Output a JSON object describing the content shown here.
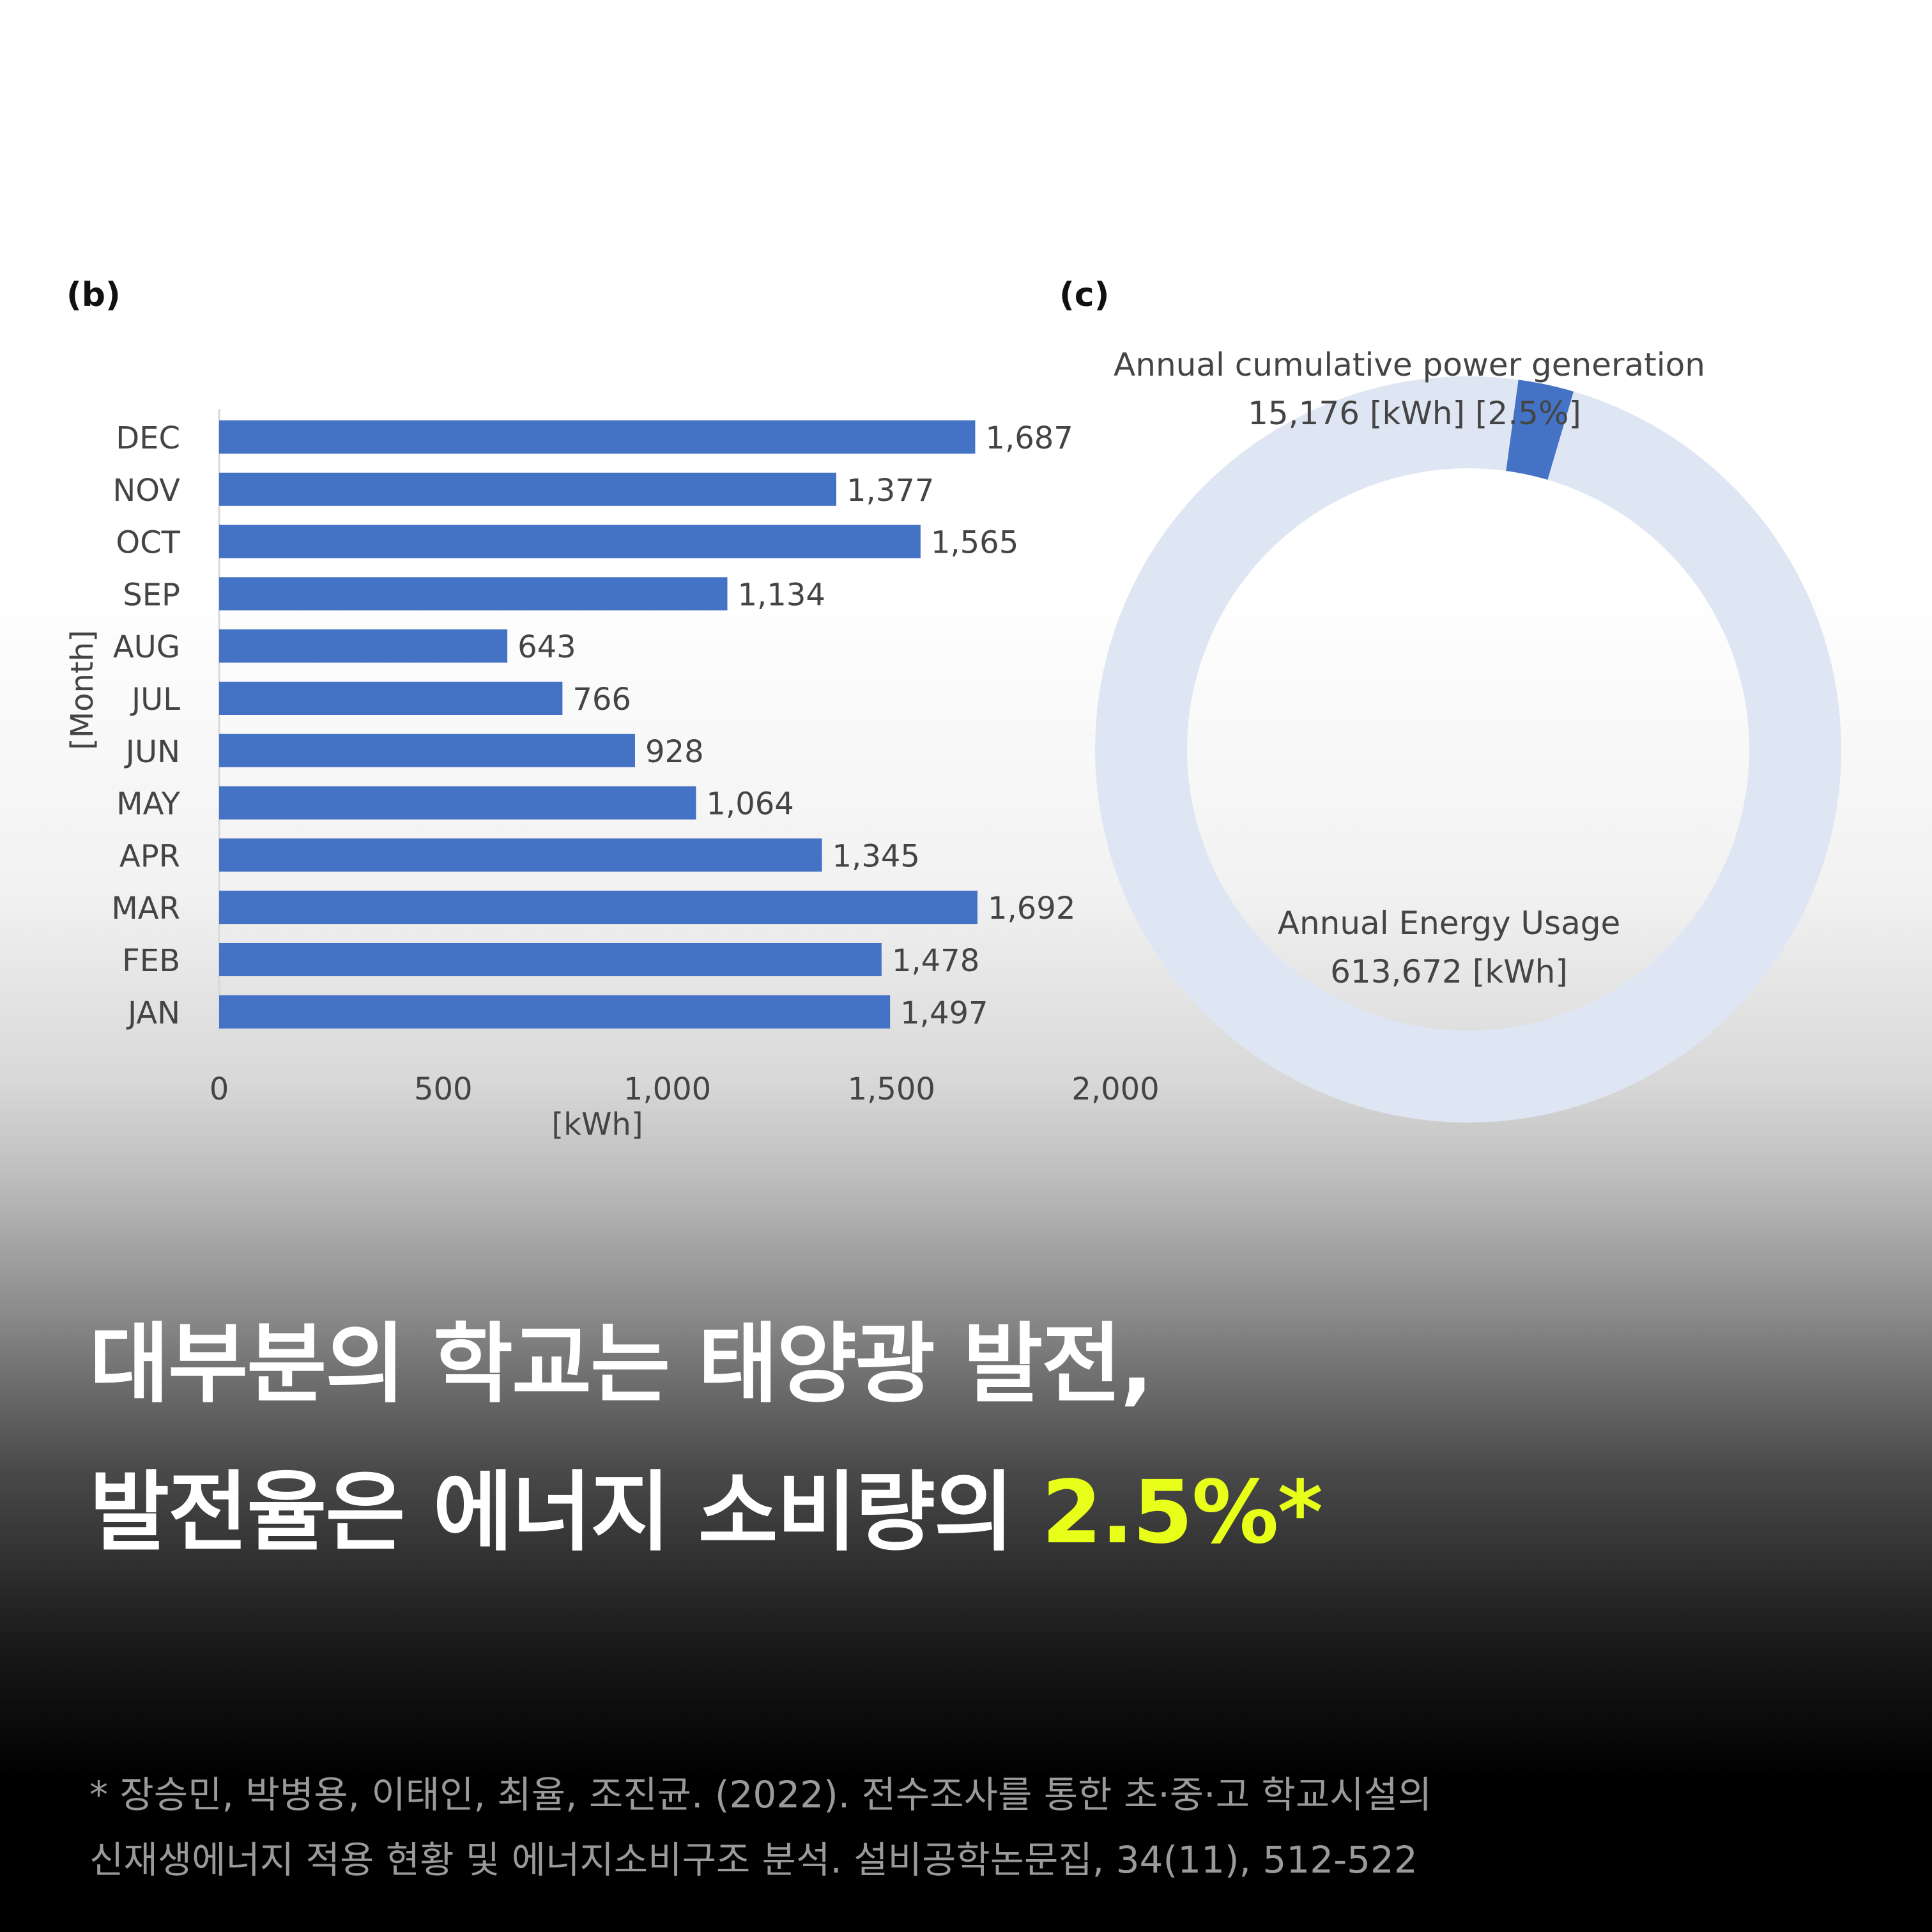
{
  "panels": {
    "b": "(b)",
    "c": "(c)"
  },
  "chart_data": [
    {
      "type": "bar",
      "orientation": "horizontal",
      "categories": [
        "JAN",
        "FEB",
        "MAR",
        "APR",
        "MAY",
        "JUN",
        "JUL",
        "AUG",
        "SEP",
        "OCT",
        "NOV",
        "DEC"
      ],
      "values": [
        1497,
        1478,
        1692,
        1345,
        1064,
        928,
        766,
        643,
        1134,
        1565,
        1377,
        1687
      ],
      "value_labels": [
        "1,497",
        "1,478",
        "1,692",
        "1,345",
        "1,064",
        "928",
        "766",
        "643",
        "1,134",
        "1,565",
        "1,377",
        "1,687"
      ],
      "xlabel": "[kWh]",
      "ylabel": "[Month]",
      "xlim": [
        0,
        2000
      ],
      "xticks": [
        "0",
        "500",
        "1,000",
        "1,500",
        "2,000"
      ],
      "bar_color": "#4472c4",
      "grid": false
    },
    {
      "type": "pie",
      "style": "donut",
      "slices": [
        {
          "label": "Annual cumulative power generation",
          "value_text": "15,176 [kWh] [2.5%]",
          "value": 15176,
          "percent": 2.5,
          "color": "#4472c4"
        },
        {
          "label": "Annual Energy Usage",
          "value_text": "613,672 [kWh]",
          "value": 613672,
          "percent": 97.5,
          "color": "#dfe6f3"
        }
      ]
    }
  ],
  "headline": {
    "line1": "대부분의 학교는 태양광 발전,",
    "line2_prefix": "발전율은 에너지 소비량의 ",
    "line2_highlight": "2.5%*",
    "highlight_color": "#e8ff1a"
  },
  "footnote": {
    "line1": "* 장승민, 박병용, 이태인, 최율, 조진균. (2022). 전수조사를 통한 초·중·고 학교시설의",
    "line2": "신재생에너지 적용 현황 및 에너지소비구조 분석. 설비공학논문집, 34(11), 512-522"
  }
}
